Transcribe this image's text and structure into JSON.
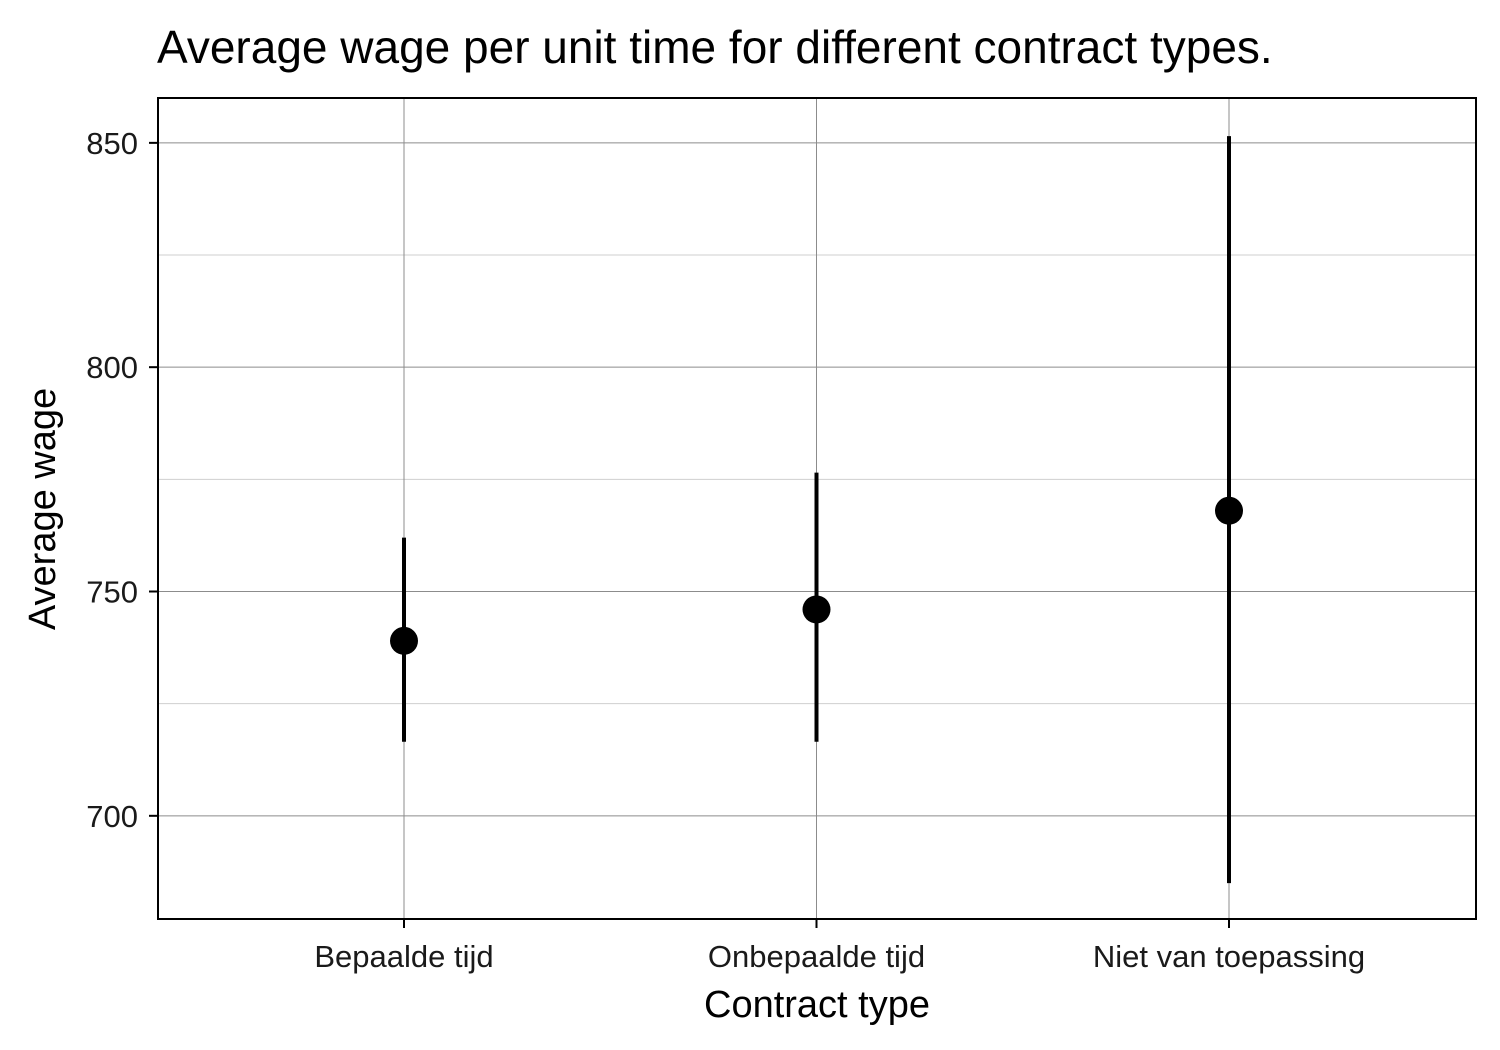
{
  "chart_data": {
    "type": "scatter",
    "title": "Average wage per unit time for different contract types.",
    "xlabel": "Contract type",
    "ylabel": "Average wage",
    "categories": [
      "Bepaalde tijd",
      "Onbepaalde tijd",
      "Niet van toepassing"
    ],
    "series": [
      {
        "values": [
          739,
          746,
          768
        ],
        "lower": [
          716.5,
          716.5,
          685
        ],
        "upper": [
          762,
          776.5,
          851.5
        ]
      }
    ],
    "y_ticks": [
      "700",
      "750",
      "800",
      "850"
    ],
    "ylim": [
      677,
      860
    ],
    "grid": true,
    "legend": "none",
    "colors": {
      "point": "#000000",
      "errorbar": "#000000",
      "grid_major": "#8c8c8c",
      "grid_minor": "#cfcfcf",
      "panel_border": "#000000"
    }
  }
}
